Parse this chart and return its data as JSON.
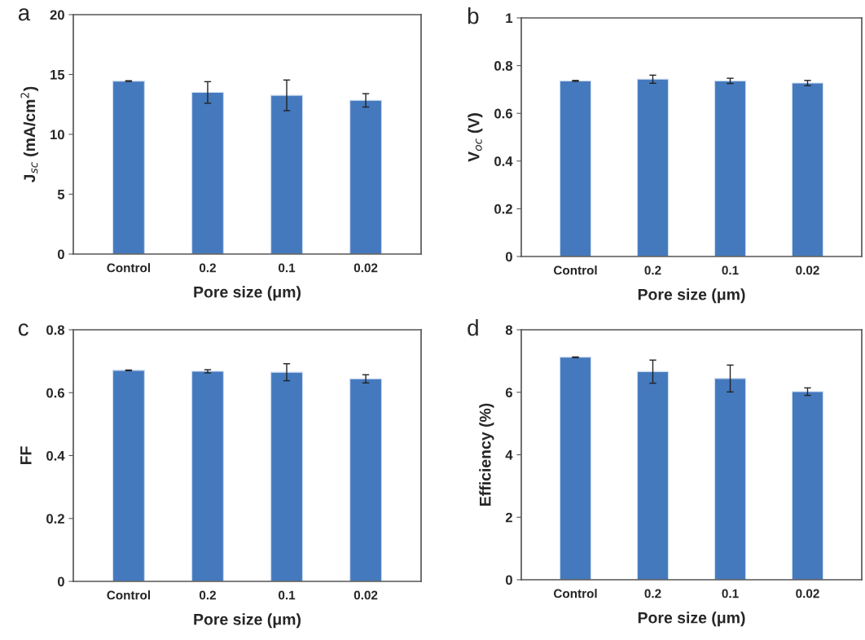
{
  "chart_data": [
    {
      "type": "bar",
      "title": "a",
      "categories": [
        "Control",
        "0.2",
        "0.1",
        "0.02"
      ],
      "xlabel": "Pore size (μm)",
      "ylabel": "J$_{sc}$ (mA/cm$^{2}$)",
      "color": "#4479bd",
      "values": [
        14.45,
        13.5,
        13.26,
        12.84
      ],
      "errors": [
        0.03,
        0.9,
        1.28,
        0.56
      ],
      "ylim": [
        0,
        20
      ],
      "yticks": [
        0,
        5,
        10,
        15,
        20
      ],
      "grid": false
    },
    {
      "type": "bar",
      "title": "b",
      "categories": [
        "Control",
        "0.2",
        "0.1",
        "0.02"
      ],
      "xlabel": "Pore size (μm)",
      "ylabel": "V$_{oc}$ (V)",
      "color": "#4479bd",
      "values": [
        0.736,
        0.743,
        0.736,
        0.727
      ],
      "errors": [
        0.002,
        0.017,
        0.011,
        0.011
      ],
      "ylim": [
        0,
        1
      ],
      "yticks": [
        0,
        0.2,
        0.4,
        0.6,
        0.8,
        1
      ],
      "grid": false
    },
    {
      "type": "bar",
      "title": "c",
      "categories": [
        "Control",
        "0.2",
        "0.1",
        "0.02"
      ],
      "xlabel": "Pore size (μm)",
      "ylabel": "FF",
      "color": "#4479bd",
      "values": [
        0.671,
        0.668,
        0.665,
        0.644
      ],
      "errors": [
        0.001,
        0.005,
        0.027,
        0.013
      ],
      "ylim": [
        0,
        0.8
      ],
      "yticks": [
        0,
        0.2,
        0.4,
        0.6,
        0.8
      ],
      "grid": false
    },
    {
      "type": "bar",
      "title": "d",
      "categories": [
        "Control",
        "0.2",
        "0.1",
        "0.02"
      ],
      "xlabel": "Pore size (μm)",
      "ylabel": "Efficiency (%)",
      "color": "#4479bd",
      "values": [
        7.12,
        6.66,
        6.44,
        6.02
      ],
      "errors": [
        0.01,
        0.37,
        0.43,
        0.12
      ],
      "ylim": [
        0,
        8
      ],
      "yticks": [
        0,
        2,
        4,
        6,
        8
      ],
      "grid": false
    }
  ]
}
